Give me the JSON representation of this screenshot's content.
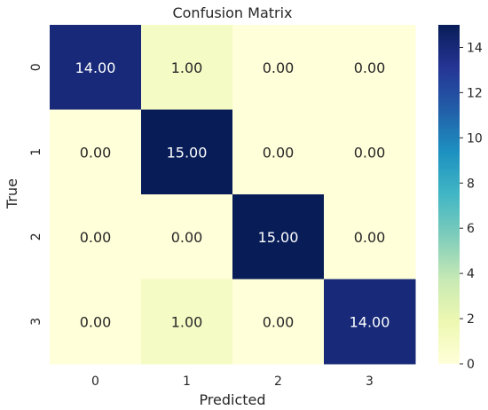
{
  "chart_data": {
    "type": "heatmap",
    "title": "Confusion Matrix",
    "xlabel": "Predicted",
    "ylabel": "True",
    "x_categories": [
      "0",
      "1",
      "2",
      "3"
    ],
    "y_categories": [
      "0",
      "1",
      "2",
      "3"
    ],
    "values": [
      [
        14,
        1,
        0,
        0
      ],
      [
        0,
        15,
        0,
        0
      ],
      [
        0,
        0,
        15,
        0
      ],
      [
        0,
        1,
        0,
        14
      ]
    ],
    "cell_labels": [
      [
        "14.00",
        "1.00",
        "0.00",
        "0.00"
      ],
      [
        "0.00",
        "15.00",
        "0.00",
        "0.00"
      ],
      [
        "0.00",
        "0.00",
        "15.00",
        "0.00"
      ],
      [
        "0.00",
        "1.00",
        "0.00",
        "14.00"
      ]
    ],
    "colormap": "YlGnBu",
    "colorbar": {
      "range": [
        0,
        15
      ],
      "ticks": [
        0,
        2,
        4,
        6,
        8,
        10,
        12,
        14
      ],
      "tick_labels": [
        "0",
        "2",
        "4",
        "6",
        "8",
        "10",
        "12",
        "14"
      ]
    }
  }
}
